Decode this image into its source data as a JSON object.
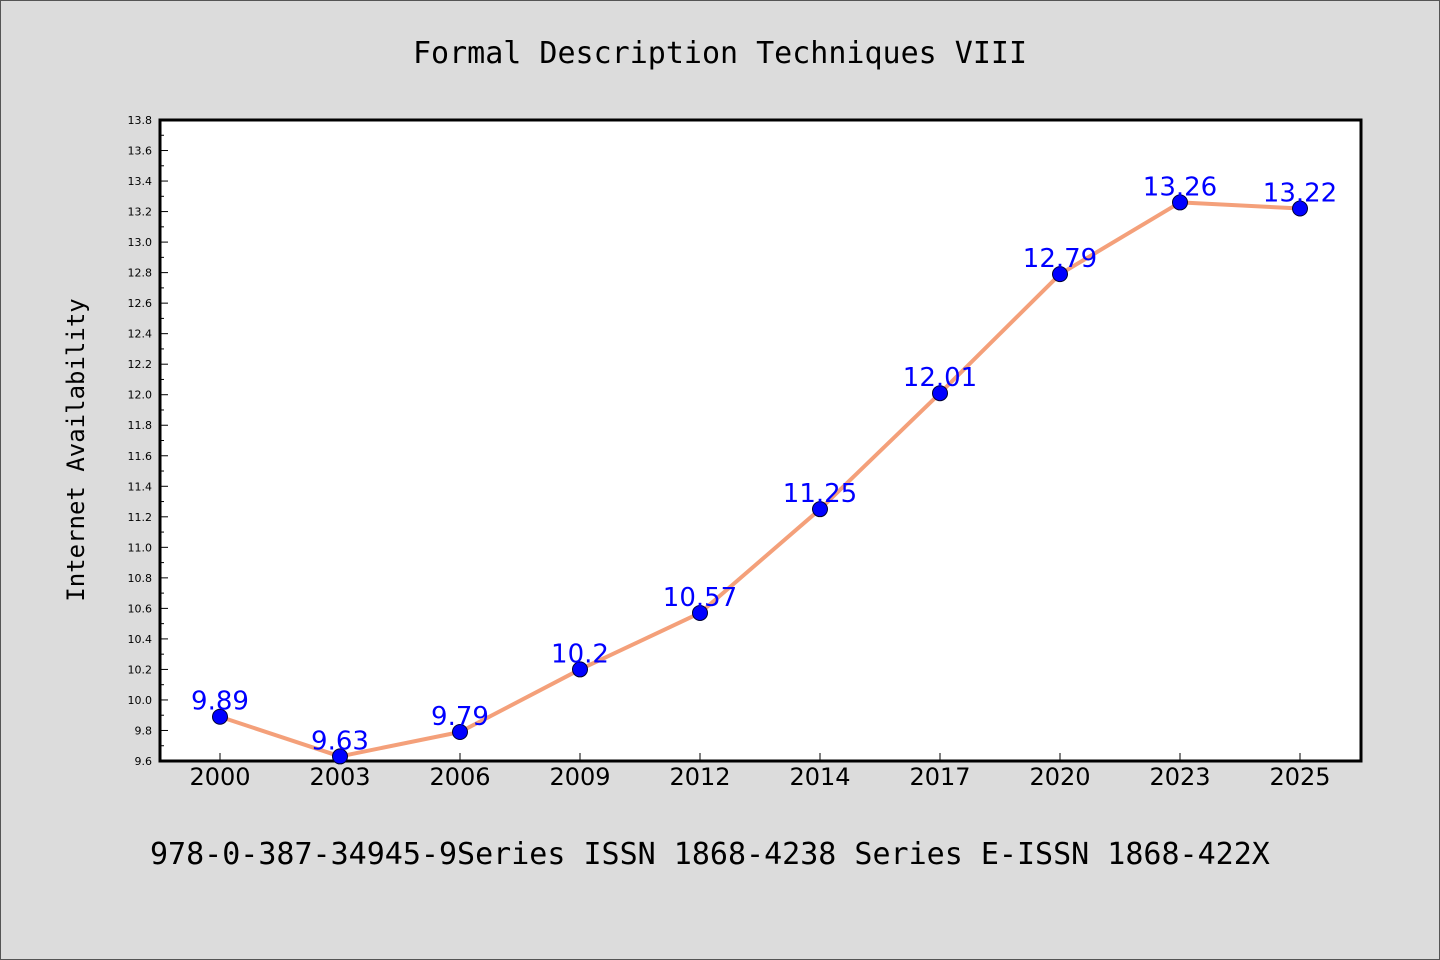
{
  "colors": {
    "line": "#f4a07a",
    "marker": "#0000ff",
    "data_label": "#0000ff",
    "background": "#dcdcdc",
    "plot_background": "#ffffff"
  },
  "footer": "978-0-387-34945-9Series ISSN 1868-4238 Series E-ISSN 1868-422X",
  "chart_data": {
    "type": "line",
    "title": "Formal Description Techniques VIII",
    "xlabel": "",
    "ylabel": "Internet Availability",
    "categories": [
      "2000",
      "2003",
      "2006",
      "2009",
      "2012",
      "2014",
      "2017",
      "2020",
      "2023",
      "2025"
    ],
    "series": [
      {
        "values": [
          9.89,
          9.63,
          9.79,
          10.2,
          10.57,
          11.25,
          12.01,
          12.79,
          13.26,
          13.22
        ],
        "labels": [
          "9.89",
          "9.63",
          "9.79",
          "10.2",
          "10.57",
          "11.25",
          "12.01",
          "12.79",
          "13.26",
          "13.22"
        ]
      }
    ],
    "ylim": [
      9.6,
      13.8
    ],
    "yticks": [
      "9.6",
      "9.8",
      "10.0",
      "10.2",
      "10.4",
      "10.6",
      "10.8",
      "11.0",
      "11.2",
      "11.4",
      "11.6",
      "11.8",
      "12.0",
      "12.2",
      "12.4",
      "12.6",
      "12.8",
      "13.0",
      "13.2",
      "13.4",
      "13.6",
      "13.8"
    ],
    "grid": false,
    "legend": "none"
  }
}
